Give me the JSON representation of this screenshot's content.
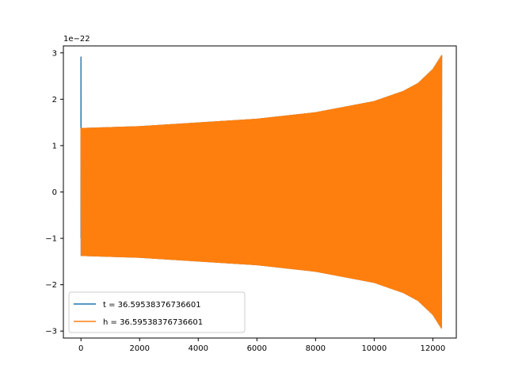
{
  "chart_data": {
    "type": "line",
    "title": "",
    "xlabel": "",
    "ylabel": "",
    "xlim": [
      -600,
      12800
    ],
    "ylim": [
      -3.15,
      3.15
    ],
    "y_offset_label": "1e−22",
    "x_ticks": [
      0,
      2000,
      4000,
      6000,
      8000,
      10000,
      12000
    ],
    "x_tick_labels": [
      "0",
      "2000",
      "4000",
      "6000",
      "8000",
      "10000",
      "12000"
    ],
    "y_ticks": [
      -3,
      -2,
      -1,
      0,
      1,
      2,
      3
    ],
    "y_tick_labels": [
      "−3",
      "−2",
      "−1",
      "0",
      "1",
      "2",
      "3"
    ],
    "grid": false,
    "legend_position": "lower-left",
    "series": [
      {
        "name": "t = 36.59538376736601",
        "color": "#1f77b4",
        "x_start": 0,
        "x_end": 12300,
        "initial_spike": {
          "x": 0,
          "max": 2.92,
          "min": -1.0
        },
        "amplitude_envelope": [
          {
            "x": 0,
            "y": 1.38
          },
          {
            "x": 2000,
            "y": 1.42
          },
          {
            "x": 4000,
            "y": 1.5
          },
          {
            "x": 6000,
            "y": 1.58
          },
          {
            "x": 8000,
            "y": 1.72
          },
          {
            "x": 10000,
            "y": 1.96
          },
          {
            "x": 11000,
            "y": 2.18
          },
          {
            "x": 11500,
            "y": 2.35
          },
          {
            "x": 12000,
            "y": 2.65
          },
          {
            "x": 12300,
            "y": 2.95
          }
        ]
      },
      {
        "name": "h = 36.59538376736601",
        "color": "#ff7f0e",
        "x_start": 0,
        "x_end": 12300,
        "amplitude_envelope": [
          {
            "x": 0,
            "y": 1.38
          },
          {
            "x": 2000,
            "y": 1.42
          },
          {
            "x": 4000,
            "y": 1.5
          },
          {
            "x": 6000,
            "y": 1.58
          },
          {
            "x": 8000,
            "y": 1.72
          },
          {
            "x": 10000,
            "y": 1.96
          },
          {
            "x": 11000,
            "y": 2.18
          },
          {
            "x": 11500,
            "y": 2.35
          },
          {
            "x": 12000,
            "y": 2.65
          },
          {
            "x": 12300,
            "y": 2.95
          }
        ]
      }
    ]
  }
}
